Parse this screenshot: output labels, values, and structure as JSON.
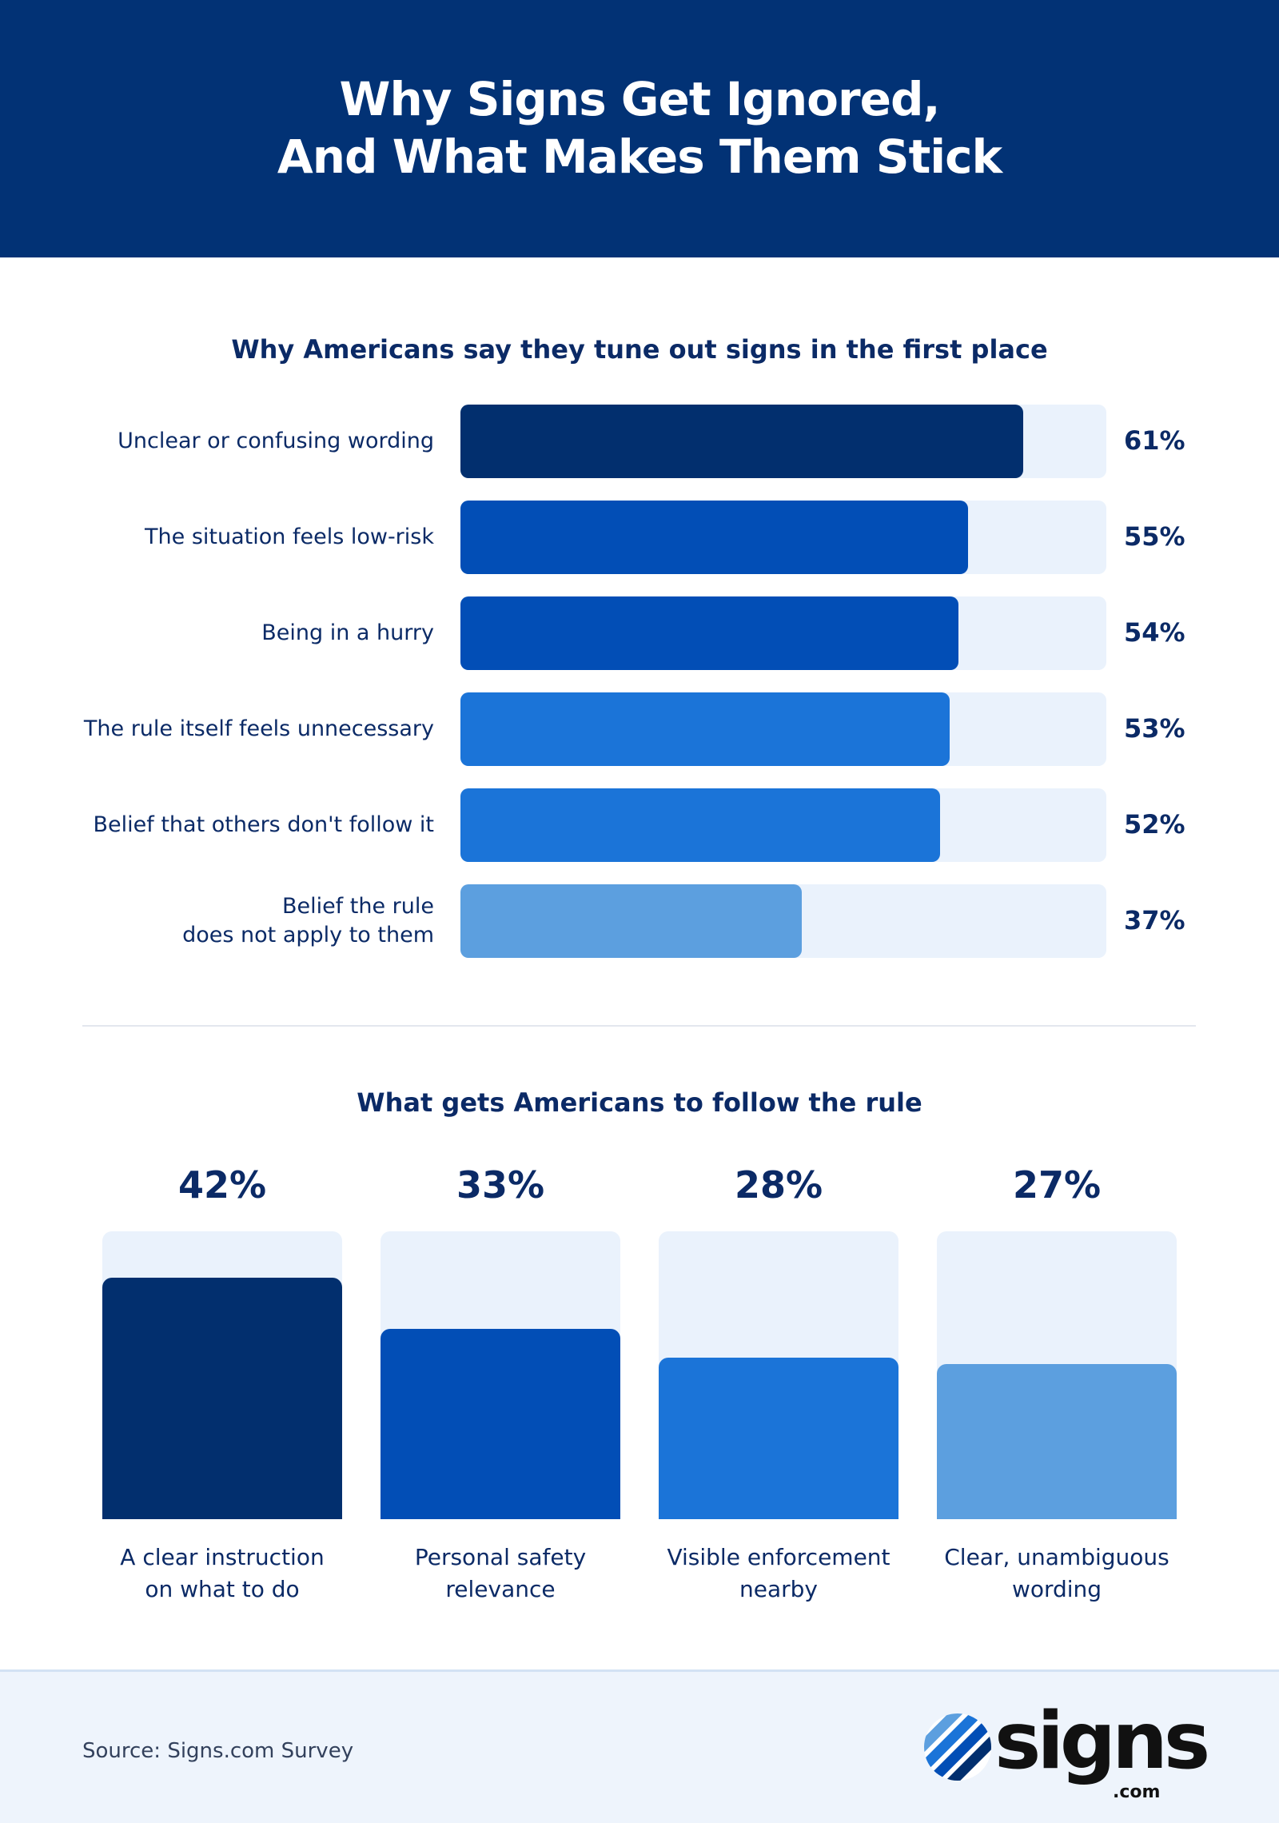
{
  "header": {
    "title_line1": "Why Signs Get Ignored,",
    "title_line2": "And What Makes Them Stick"
  },
  "chart_data": [
    {
      "type": "bar",
      "orientation": "horizontal",
      "title": "Why Americans say they tune out signs in the first place",
      "categories": [
        [
          "Unclear or confusing wording"
        ],
        [
          "The situation feels low-risk"
        ],
        [
          "Being in a hurry"
        ],
        [
          "The rule itself feels unnecessary"
        ],
        [
          "Belief that others don't follow it"
        ],
        [
          "Belief the rule",
          "does not apply to them"
        ]
      ],
      "values": [
        61,
        55,
        54,
        53,
        52,
        37
      ],
      "value_labels": [
        "61%",
        "55%",
        "54%",
        "53%",
        "52%",
        "37%"
      ],
      "colors": [
        "#022f6e",
        "#024eb6",
        "#024eb6",
        "#1b74d8",
        "#1b74d8",
        "#5c9fdf"
      ],
      "xlim": [
        0,
        70
      ]
    },
    {
      "type": "bar",
      "orientation": "vertical",
      "title": "What gets Americans to follow the rule",
      "categories": [
        [
          "A clear instruction",
          "on what to do"
        ],
        [
          "Personal safety",
          "relevance"
        ],
        [
          "Visible enforcement",
          "nearby"
        ],
        [
          "Clear, unambiguous",
          "wording"
        ]
      ],
      "values": [
        42,
        33,
        28,
        27
      ],
      "value_labels": [
        "42%",
        "33%",
        "28%",
        "27%"
      ],
      "colors": [
        "#022f6e",
        "#024eb6",
        "#1b74d8",
        "#5c9fdf"
      ],
      "ylim": [
        0,
        50
      ]
    }
  ],
  "footer": {
    "source": "Source: Signs.com Survey",
    "logo_text": "signs",
    "logo_domain": ".com",
    "logo_icon": "signs-logo-stripes-icon"
  }
}
